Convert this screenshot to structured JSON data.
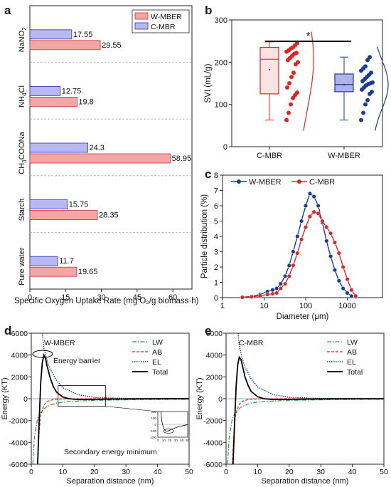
{
  "colors": {
    "wmber": "#f2a6a6",
    "wmber_edge": "#cc3333",
    "cmbr": "#b8b8f2",
    "cmbr_edge": "#3333bb",
    "red": "#e02424",
    "blue": "#1a3e8f",
    "lw": "#2e9e4e",
    "total": "#000000"
  },
  "chart_data": [
    {
      "panel": "a",
      "type": "bar",
      "orientation": "horizontal",
      "categories": [
        "NaNO2",
        "NH4Cl",
        "CH3COONa",
        "Starch",
        "Pure water"
      ],
      "category_labels": [
        {
          "main": "NaNO",
          "sub": "2",
          "tail": ""
        },
        {
          "main": "NH",
          "sub": "4",
          "tail": "Cl"
        },
        {
          "main": "CH",
          "sub": "3",
          "tail": "COONa"
        },
        {
          "main": "Starch",
          "sub": "",
          "tail": ""
        },
        {
          "main": "Pure water",
          "sub": "",
          "tail": ""
        }
      ],
      "series": [
        {
          "name": "W-MBER",
          "values": [
            29.55,
            19.8,
            58.95,
            28.35,
            19.65
          ]
        },
        {
          "name": "C-MBR",
          "values": [
            17.55,
            12.75,
            24.3,
            15.75,
            11.7
          ]
        }
      ],
      "value_labels": {
        "W-MBER": [
          "29.55",
          "19.8",
          "58.95",
          "28.35",
          "19.65"
        ],
        "C-MBR": [
          "17.55",
          "12.75",
          "24.3",
          "15.75",
          "11.7"
        ]
      },
      "xlabel": "Specific Oxygen Uptake Rate (mg O₂/g biomass·h)",
      "xlim": [
        0,
        68
      ],
      "xticks": [
        0,
        15,
        30,
        45,
        60
      ],
      "legend": "top-right"
    },
    {
      "panel": "b",
      "type": "box",
      "categories": [
        "C-MBR",
        "W-MBER"
      ],
      "boxes": [
        {
          "name": "C-MBR",
          "min": 63,
          "q1": 125,
          "median": 207,
          "q3": 235,
          "max": 248,
          "mean": 182,
          "points": [
            63,
            80,
            100,
            115,
            122,
            128,
            140,
            150,
            165,
            175,
            195,
            200,
            205,
            210,
            215,
            220,
            222,
            225,
            228,
            232,
            235,
            240,
            245
          ]
        },
        {
          "name": "W-MBER",
          "min": 63,
          "q1": 130,
          "median": 147,
          "q3": 172,
          "max": 212,
          "mean": 147,
          "points": [
            63,
            80,
            100,
            110,
            125,
            130,
            135,
            140,
            145,
            148,
            150,
            152,
            155,
            160,
            165,
            170,
            175,
            180,
            185,
            190,
            205,
            212
          ]
        }
      ],
      "ylabel": "SVI (mL/g)",
      "ylim": [
        0,
        300
      ],
      "yticks": [
        0,
        100,
        200,
        300
      ],
      "significance": "*"
    },
    {
      "panel": "c",
      "type": "line",
      "xscale": "log",
      "series": [
        {
          "name": "W-MBER",
          "x": [
            20,
            25,
            32,
            40,
            50,
            63,
            79,
            100,
            126,
            158,
            200,
            251,
            316,
            398,
            501,
            631,
            794,
            1000,
            1259,
            1585
          ],
          "y": [
            0.6,
            0.9,
            1.4,
            2.1,
            3.0,
            4.0,
            5.0,
            6.0,
            6.8,
            6.6,
            6.0,
            4.9,
            3.7,
            2.7,
            1.8,
            1.1,
            0.6,
            0.3,
            0.1,
            0.05
          ]
        },
        {
          "name": "C-MBR",
          "x": [
            20,
            25,
            32,
            40,
            50,
            63,
            79,
            100,
            126,
            158,
            200,
            251,
            316,
            398,
            501,
            631,
            794,
            1000,
            1259,
            1585
          ],
          "y": [
            0.3,
            0.6,
            0.9,
            1.4,
            2.1,
            2.9,
            3.8,
            4.6,
            5.3,
            5.6,
            5.5,
            5.0,
            4.6,
            4.2,
            3.6,
            2.9,
            2.0,
            1.2,
            0.5,
            0.1
          ]
        }
      ],
      "xlabel": "Diameter (μm)",
      "ylabel": "Particle distribution (%)",
      "xlim": [
        1,
        7000
      ],
      "xticks": [
        1,
        10,
        100,
        1000
      ],
      "ylim": [
        0,
        8
      ],
      "yticks": [
        0,
        1,
        2,
        3,
        4,
        5,
        6,
        7,
        8
      ],
      "legend": "top"
    },
    {
      "panel": "d",
      "type": "line",
      "title": "W-MBER",
      "series": [
        {
          "name": "LW",
          "x": [
            0.5,
            1,
            2,
            3,
            5,
            8,
            12,
            20,
            35,
            50
          ],
          "y": [
            -6000,
            -3500,
            -1800,
            -1200,
            -700,
            -400,
            -250,
            -150,
            -80,
            -50
          ]
        },
        {
          "name": "AB",
          "x": [
            2.0,
            2.5,
            3,
            4,
            5,
            7,
            10,
            20,
            50
          ],
          "y": [
            -6000,
            -3000,
            -1500,
            -600,
            -250,
            -80,
            -20,
            0,
            0
          ]
        },
        {
          "name": "EL",
          "x": [
            3.5,
            4,
            5,
            6,
            8,
            10,
            15,
            20,
            30,
            50
          ],
          "y": [
            6000,
            4600,
            3500,
            2700,
            1700,
            1000,
            350,
            120,
            20,
            0
          ]
        },
        {
          "name": "Total",
          "x": [
            2.0,
            2.5,
            3,
            3.5,
            4,
            4.5,
            5,
            6,
            7,
            8,
            10,
            12,
            15,
            20,
            30,
            50
          ],
          "y": [
            -6000,
            -2000,
            1500,
            3300,
            4000,
            3700,
            3000,
            1900,
            1100,
            600,
            150,
            0,
            -80,
            -60,
            -20,
            0
          ]
        }
      ],
      "annotations": [
        "Energy barrier",
        "Secondary energy minimum"
      ],
      "inset": {
        "xticks": [
          0,
          10,
          20,
          30,
          40,
          50
        ],
        "yticks": [
          200,
          100,
          0,
          -100,
          -200
        ]
      },
      "xlabel": "Separation distance (nm)",
      "ylabel": "Energy (KT)",
      "xlim": [
        0,
        50
      ],
      "xticks": [
        0,
        10,
        20,
        30,
        40,
        50
      ],
      "ylim": [
        -6000,
        6000
      ],
      "yticks": [
        -6000,
        -4000,
        -2000,
        0,
        2000,
        4000,
        6000
      ],
      "legend": "top-right"
    },
    {
      "panel": "e",
      "type": "line",
      "title": "C-MBR",
      "series": [
        {
          "name": "LW",
          "x": [
            0.5,
            1,
            2,
            3,
            5,
            8,
            12,
            20,
            35,
            50
          ],
          "y": [
            -6000,
            -3500,
            -1800,
            -1200,
            -700,
            -400,
            -250,
            -150,
            -80,
            -50
          ]
        },
        {
          "name": "AB",
          "x": [
            2.0,
            2.5,
            3,
            4,
            5,
            7,
            10,
            20,
            50
          ],
          "y": [
            -6000,
            -3000,
            -1500,
            -600,
            -250,
            -80,
            -20,
            0,
            0
          ]
        },
        {
          "name": "EL",
          "x": [
            3.8,
            4.2,
            5,
            6,
            8,
            10,
            15,
            20,
            30,
            50
          ],
          "y": [
            6000,
            4800,
            3800,
            2900,
            1800,
            1050,
            380,
            130,
            20,
            0
          ]
        },
        {
          "name": "Total",
          "x": [
            2.2,
            2.7,
            3.2,
            3.7,
            4.2,
            4.7,
            5.2,
            6,
            7,
            8,
            10,
            12,
            15,
            20,
            30,
            50
          ],
          "y": [
            -6000,
            -2200,
            1200,
            3100,
            3800,
            3600,
            3000,
            2000,
            1200,
            650,
            180,
            0,
            -80,
            -60,
            -20,
            0
          ]
        }
      ],
      "xlabel": "Separation distance (nm)",
      "ylabel": "Energy (KT)",
      "xlim": [
        0,
        50
      ],
      "xticks": [
        0,
        10,
        20,
        30,
        40,
        50
      ],
      "ylim": [
        -6000,
        6000
      ],
      "yticks": [
        -6000,
        -4000,
        -2000,
        0,
        2000,
        4000,
        6000
      ],
      "legend": "top-right"
    }
  ],
  "panel_letters": [
    "a",
    "b",
    "c",
    "d",
    "e"
  ]
}
